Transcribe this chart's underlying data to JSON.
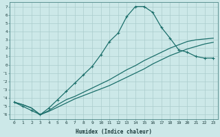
{
  "xlabel": "Humidex (Indice chaleur)",
  "bg_color": "#cce8e8",
  "grid_color": "#aacccc",
  "line_color": "#1a6e6a",
  "ylim": [
    -6.5,
    7.5
  ],
  "xlim": [
    -0.5,
    23.5
  ],
  "yticks": [
    7,
    6,
    5,
    4,
    3,
    2,
    1,
    0,
    -1,
    -2,
    -3,
    -4,
    -5,
    -6
  ],
  "ytick_labels": [
    "7",
    "6",
    "5",
    "4",
    "3",
    "2",
    "1",
    "0",
    "¯1",
    "¯2",
    "¯3",
    "¯4",
    "¯5",
    "¯6"
  ],
  "xticks": [
    0,
    1,
    2,
    3,
    4,
    5,
    6,
    7,
    8,
    9,
    10,
    11,
    12,
    13,
    14,
    15,
    16,
    17,
    18,
    19,
    20,
    21,
    22,
    23
  ],
  "line1_x": [
    0,
    1,
    2,
    3,
    4,
    5,
    6,
    7,
    8,
    9,
    10,
    11,
    12,
    13,
    14,
    15,
    16,
    17,
    18,
    19,
    20,
    21,
    22,
    23
  ],
  "line1_y": [
    -4.5,
    -5.0,
    -5.5,
    -6.0,
    -5.2,
    -4.2,
    -3.2,
    -2.2,
    -1.2,
    -0.2,
    1.2,
    2.8,
    3.8,
    5.8,
    7.0,
    7.0,
    6.3,
    4.5,
    3.2,
    1.8,
    1.5,
    1.0,
    0.8,
    0.8
  ],
  "line2_x": [
    0,
    1,
    2,
    3,
    4,
    5,
    6,
    7,
    8,
    9,
    10,
    11,
    12,
    13,
    14,
    15,
    16,
    17,
    18,
    19,
    20,
    21,
    22,
    23
  ],
  "line2_y": [
    -4.5,
    -4.8,
    -5.2,
    -6.0,
    -5.5,
    -4.8,
    -4.2,
    -3.8,
    -3.3,
    -2.8,
    -2.3,
    -1.8,
    -1.2,
    -0.6,
    -0.1,
    0.5,
    1.0,
    1.5,
    2.0,
    2.4,
    2.8,
    3.0,
    3.1,
    3.2
  ],
  "line3_x": [
    0,
    1,
    2,
    3,
    4,
    5,
    6,
    7,
    8,
    9,
    10,
    11,
    12,
    13,
    14,
    15,
    16,
    17,
    18,
    19,
    20,
    21,
    22,
    23
  ],
  "line3_y": [
    -4.5,
    -4.8,
    -5.2,
    -6.0,
    -5.6,
    -5.1,
    -4.6,
    -4.1,
    -3.7,
    -3.3,
    -2.9,
    -2.5,
    -2.0,
    -1.5,
    -1.0,
    -0.5,
    0.1,
    0.6,
    1.1,
    1.5,
    1.9,
    2.2,
    2.5,
    2.7
  ]
}
